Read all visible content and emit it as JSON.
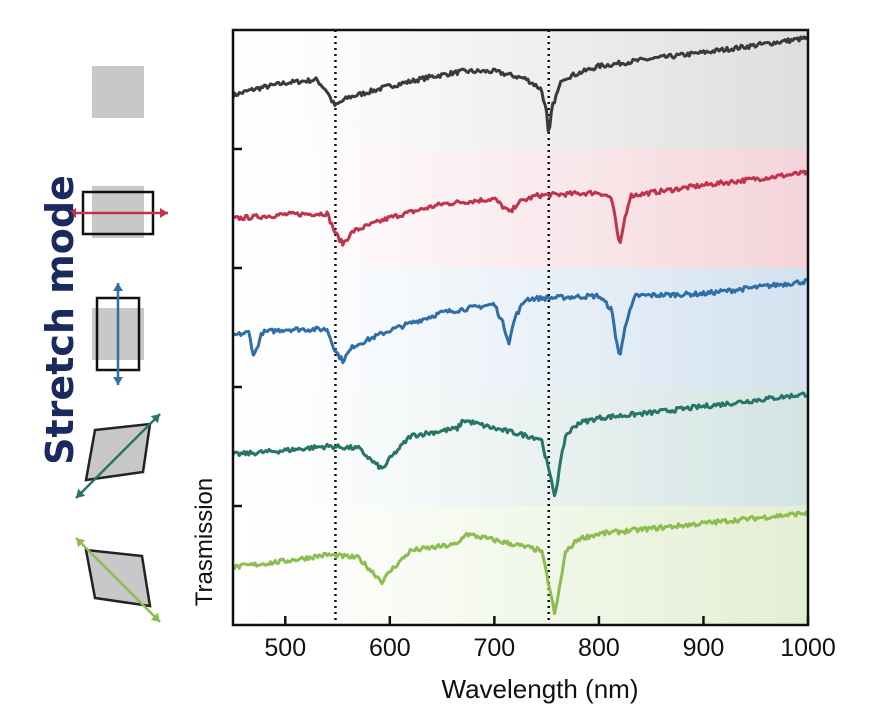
{
  "side_label": "Stretch mode",
  "mode_icons": [
    {
      "name": "unstretched",
      "arrow_color": null
    },
    {
      "name": "horizontal-stretch",
      "arrow_color": "#c0334d"
    },
    {
      "name": "vertical-stretch",
      "arrow_color": "#2e6fa7"
    },
    {
      "name": "diagonal-shear-right",
      "arrow_color": "#267566"
    },
    {
      "name": "diagonal-shear-left",
      "arrow_color": "#8bbd4f"
    }
  ],
  "chart_data": {
    "type": "line",
    "xlabel": "Wavelength (nm)",
    "ylabel": "Trasmission",
    "xlim": [
      450,
      1000
    ],
    "xticks": [
      500,
      600,
      700,
      800,
      900,
      1000
    ],
    "reference_lines_x": [
      548,
      752
    ],
    "series": [
      {
        "color": "#3a3a3a",
        "band": "#dedede",
        "x": [
          450,
          470,
          500,
          530,
          540,
          545,
          548,
          552,
          560,
          600,
          640,
          670,
          700,
          730,
          745,
          750,
          752,
          755,
          765,
          800,
          850,
          900,
          950,
          1000
        ],
        "y": [
          0.62,
          0.68,
          0.74,
          0.77,
          0.66,
          0.56,
          0.52,
          0.55,
          0.6,
          0.71,
          0.8,
          0.85,
          0.85,
          0.78,
          0.68,
          0.45,
          0.2,
          0.5,
          0.78,
          0.9,
          0.97,
          1.03,
          1.1,
          1.17
        ]
      },
      {
        "color": "#c0334d",
        "band": "#f4d4da",
        "x": [
          450,
          500,
          540,
          548,
          555,
          565,
          600,
          650,
          700,
          712,
          716,
          722,
          740,
          800,
          812,
          816,
          820,
          824,
          830,
          900,
          1000
        ],
        "y": [
          0.58,
          0.62,
          0.63,
          0.44,
          0.34,
          0.46,
          0.59,
          0.72,
          0.77,
          0.66,
          0.64,
          0.73,
          0.8,
          0.83,
          0.78,
          0.55,
          0.3,
          0.55,
          0.8,
          0.9,
          1.02
        ]
      },
      {
        "color": "#2e6fa7",
        "band": "#d3e2f0",
        "x": [
          450,
          465,
          470,
          478,
          500,
          540,
          548,
          555,
          565,
          600,
          650,
          700,
          708,
          714,
          720,
          730,
          800,
          812,
          816,
          820,
          825,
          835,
          900,
          1000
        ],
        "y": [
          0.6,
          0.63,
          0.4,
          0.63,
          0.66,
          0.66,
          0.45,
          0.36,
          0.5,
          0.65,
          0.82,
          0.9,
          0.72,
          0.54,
          0.78,
          0.95,
          0.98,
          0.85,
          0.6,
          0.38,
          0.7,
          0.98,
          1.0,
          1.12
        ]
      },
      {
        "color": "#267566",
        "band": "#d3e4e2",
        "x": [
          450,
          500,
          540,
          570,
          585,
          593,
          600,
          620,
          665,
          670,
          700,
          745,
          752,
          758,
          762,
          768,
          780,
          800,
          850,
          900,
          1000
        ],
        "y": [
          0.6,
          0.64,
          0.68,
          0.66,
          0.52,
          0.46,
          0.56,
          0.78,
          0.85,
          0.93,
          0.85,
          0.75,
          0.45,
          0.2,
          0.45,
          0.78,
          0.9,
          0.95,
          1.0,
          1.06,
          1.18
        ]
      },
      {
        "color": "#8bbd4f",
        "band": "#e3efd3",
        "x": [
          450,
          500,
          540,
          570,
          585,
          593,
          600,
          620,
          665,
          672,
          700,
          745,
          752,
          758,
          762,
          768,
          780,
          800,
          850,
          900,
          1000
        ],
        "y": [
          0.66,
          0.72,
          0.78,
          0.75,
          0.6,
          0.52,
          0.62,
          0.82,
          0.88,
          0.98,
          0.92,
          0.82,
          0.5,
          0.2,
          0.45,
          0.8,
          0.93,
          0.98,
          1.03,
          1.08,
          1.18
        ]
      }
    ]
  }
}
